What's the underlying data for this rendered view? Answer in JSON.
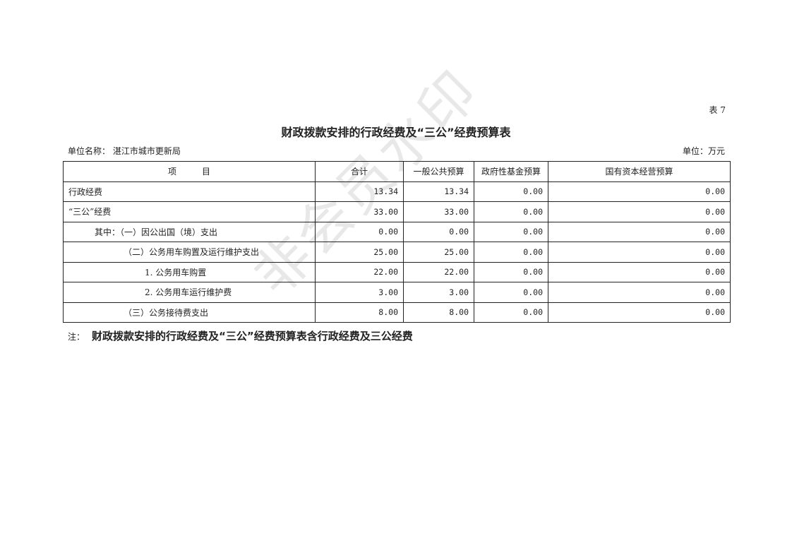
{
  "table_no": "表 7",
  "title": "财政拨款安排的行政经费及“三公”经费预算表",
  "unit_name_label": "单位名称：",
  "unit_name": "湛江市城市更新局",
  "unit": "单位：万元",
  "headers": [
    "项　　　目",
    "合计",
    "一般公共预算",
    "政府性基金预算",
    "国有资本经营预算"
  ],
  "rows": [
    {
      "item": "行政经费",
      "indent": 0,
      "values": [
        "13.34",
        "13.34",
        "0.00",
        "0.00"
      ]
    },
    {
      "item": "“三公”经费",
      "indent": 0,
      "values": [
        "33.00",
        "33.00",
        "0.00",
        "0.00"
      ]
    },
    {
      "item": "其中：（一）因公出国（境）支出",
      "indent": 1,
      "values": [
        "0.00",
        "0.00",
        "0.00",
        "0.00"
      ]
    },
    {
      "item": "（二）公务用车购置及运行维护支出",
      "indent": 2,
      "values": [
        "25.00",
        "25.00",
        "0.00",
        "0.00"
      ]
    },
    {
      "item": "1. 公务用车购置",
      "indent": 3,
      "values": [
        "22.00",
        "22.00",
        "0.00",
        "0.00"
      ]
    },
    {
      "item": "2. 公务用车运行维护费",
      "indent": 3,
      "values": [
        "3.00",
        "3.00",
        "0.00",
        "0.00"
      ]
    },
    {
      "item": "（三）公务接待费支出",
      "indent": 2,
      "values": [
        "8.00",
        "8.00",
        "0.00",
        "0.00"
      ]
    }
  ],
  "note_label": "注：",
  "note": "财政拨款安排的行政经费及“三公”经费预算表含行政经费及三公经费",
  "watermark": "非会员水印"
}
